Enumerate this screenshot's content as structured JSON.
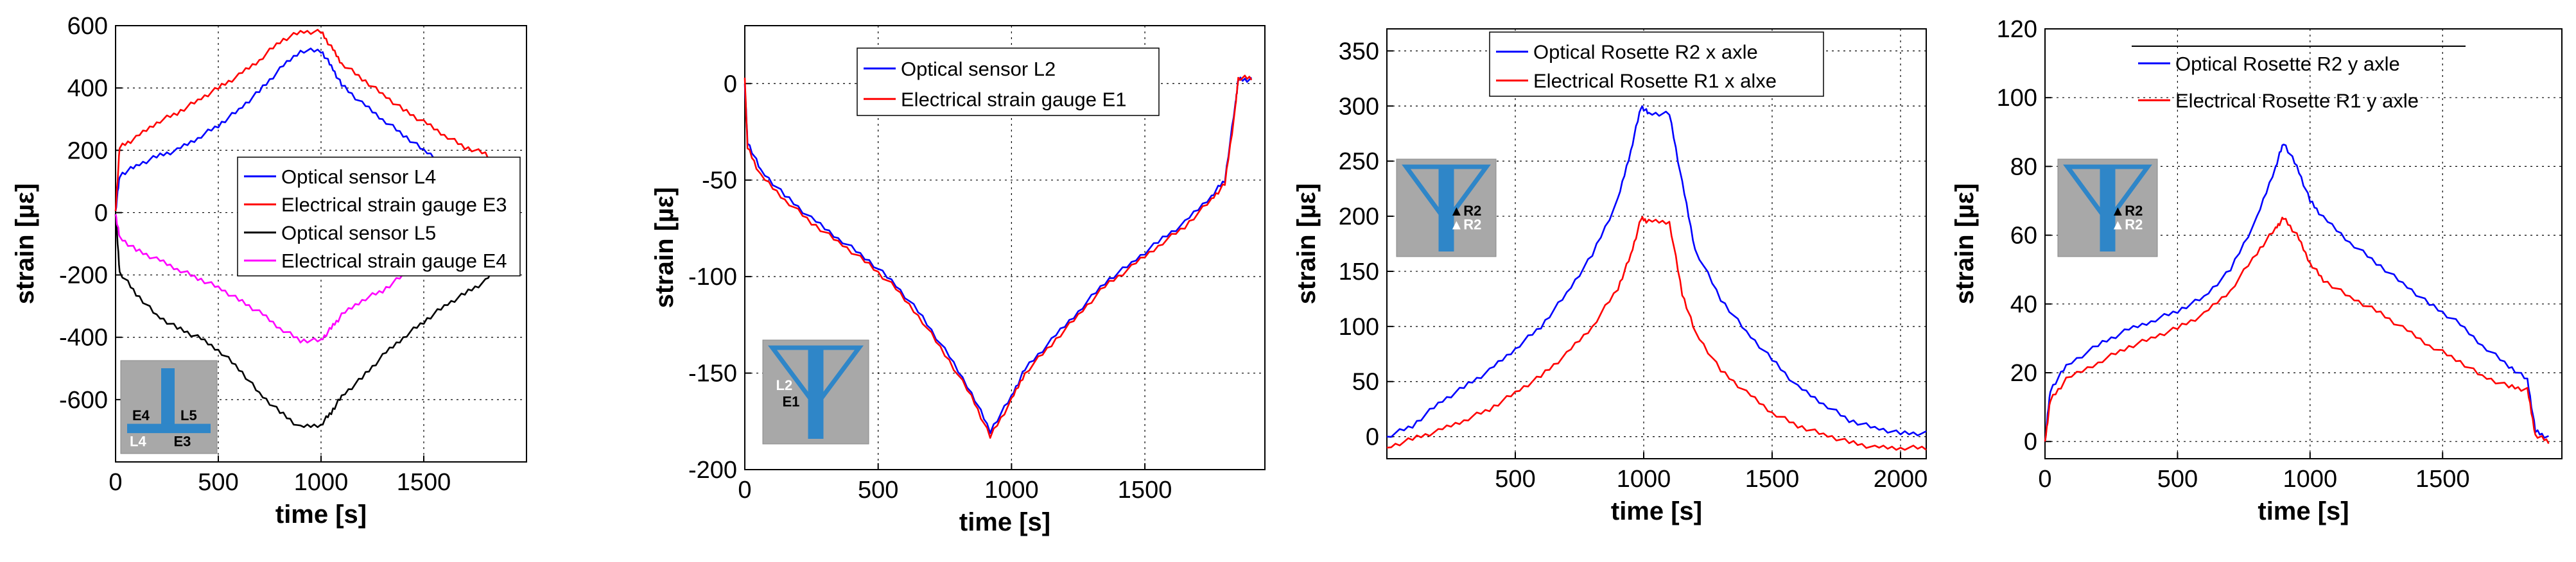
{
  "colors": {
    "blue": "#0000ff",
    "red": "#ff0000",
    "black": "#000000",
    "magenta": "#ff00ff",
    "inset_bg": "#a8a8a8",
    "inset_shape": "#2f86c8"
  },
  "chart_data": [
    {
      "type": "line",
      "xlabel": "time [s]",
      "ylabel": "strain [µε]",
      "xlim": [
        0,
        2000
      ],
      "ylim": [
        -800,
        600
      ],
      "xticks": [
        0,
        500,
        1000,
        1500
      ],
      "yticks": [
        -600,
        -400,
        -200,
        0,
        200,
        400,
        600
      ],
      "grid": true,
      "legend_position": "center-right",
      "inset_labels": [
        "E4",
        "L5",
        "L4",
        "E3"
      ],
      "series": [
        {
          "name": "Optical sensor L4",
          "color": "blue",
          "points": [
            [
              0,
              5
            ],
            [
              20,
              120
            ],
            [
              100,
              150
            ],
            [
              200,
              180
            ],
            [
              300,
              200
            ],
            [
              400,
              240
            ],
            [
              500,
              280
            ],
            [
              600,
              330
            ],
            [
              700,
              390
            ],
            [
              800,
              460
            ],
            [
              900,
              520
            ],
            [
              1000,
              520
            ],
            [
              1050,
              470
            ],
            [
              1100,
              410
            ],
            [
              1200,
              350
            ],
            [
              1300,
              300
            ],
            [
              1400,
              250
            ],
            [
              1500,
              200
            ],
            [
              1600,
              160
            ],
            [
              1700,
              130
            ],
            [
              1800,
              110
            ],
            [
              1880,
              80
            ],
            [
              1910,
              0
            ],
            [
              1960,
              0
            ]
          ]
        },
        {
          "name": "Electrical strain gauge E3",
          "color": "red",
          "points": [
            [
              0,
              5
            ],
            [
              20,
              210
            ],
            [
              100,
              240
            ],
            [
              200,
              290
            ],
            [
              300,
              320
            ],
            [
              400,
              360
            ],
            [
              500,
              400
            ],
            [
              600,
              440
            ],
            [
              700,
              490
            ],
            [
              800,
              550
            ],
            [
              900,
              580
            ],
            [
              1000,
              580
            ],
            [
              1050,
              530
            ],
            [
              1100,
              480
            ],
            [
              1200,
              430
            ],
            [
              1300,
              380
            ],
            [
              1400,
              330
            ],
            [
              1500,
              290
            ],
            [
              1600,
              250
            ],
            [
              1700,
              210
            ],
            [
              1800,
              190
            ],
            [
              1880,
              110
            ],
            [
              1910,
              10
            ],
            [
              1960,
              10
            ]
          ]
        },
        {
          "name": "Optical sensor L5",
          "color": "black",
          "points": [
            [
              0,
              -5
            ],
            [
              20,
              -190
            ],
            [
              100,
              -260
            ],
            [
              200,
              -330
            ],
            [
              300,
              -370
            ],
            [
              400,
              -400
            ],
            [
              500,
              -440
            ],
            [
              600,
              -500
            ],
            [
              700,
              -580
            ],
            [
              800,
              -640
            ],
            [
              900,
              -690
            ],
            [
              1000,
              -680
            ],
            [
              1050,
              -640
            ],
            [
              1100,
              -590
            ],
            [
              1200,
              -530
            ],
            [
              1300,
              -460
            ],
            [
              1400,
              -400
            ],
            [
              1500,
              -350
            ],
            [
              1600,
              -300
            ],
            [
              1700,
              -260
            ],
            [
              1800,
              -220
            ],
            [
              1880,
              -160
            ],
            [
              1910,
              -20
            ],
            [
              1960,
              -20
            ]
          ]
        },
        {
          "name": "Electrical strain gauge  E4",
          "color": "magenta",
          "points": [
            [
              0,
              -5
            ],
            [
              20,
              -80
            ],
            [
              100,
              -120
            ],
            [
              200,
              -150
            ],
            [
              300,
              -180
            ],
            [
              400,
              -210
            ],
            [
              500,
              -240
            ],
            [
              600,
              -280
            ],
            [
              700,
              -320
            ],
            [
              800,
              -370
            ],
            [
              900,
              -410
            ],
            [
              1000,
              -410
            ],
            [
              1050,
              -370
            ],
            [
              1100,
              -330
            ],
            [
              1200,
              -280
            ],
            [
              1300,
              -250
            ],
            [
              1400,
              -200
            ],
            [
              1500,
              -170
            ],
            [
              1600,
              -140
            ],
            [
              1700,
              -110
            ],
            [
              1800,
              -90
            ],
            [
              1880,
              -60
            ],
            [
              1910,
              -10
            ],
            [
              1960,
              -10
            ]
          ]
        }
      ]
    },
    {
      "type": "line",
      "xlabel": "time [s]",
      "ylabel": "strain [µε]",
      "xlim": [
        0,
        1950
      ],
      "ylim": [
        -200,
        30
      ],
      "xticks": [
        0,
        500,
        1000,
        1500
      ],
      "yticks": [
        -200,
        -150,
        -100,
        -50,
        0
      ],
      "grid": true,
      "legend_position": "top-center",
      "inset_labels": [
        "L2",
        "E1"
      ],
      "series": [
        {
          "name": "Optical sensor L2",
          "color": "blue",
          "points": [
            [
              0,
              0
            ],
            [
              10,
              -30
            ],
            [
              60,
              -45
            ],
            [
              150,
              -58
            ],
            [
              250,
              -70
            ],
            [
              350,
              -80
            ],
            [
              450,
              -90
            ],
            [
              550,
              -102
            ],
            [
              650,
              -118
            ],
            [
              750,
              -138
            ],
            [
              850,
              -160
            ],
            [
              920,
              -180
            ],
            [
              1000,
              -162
            ],
            [
              1050,
              -148
            ],
            [
              1150,
              -133
            ],
            [
              1250,
              -118
            ],
            [
              1350,
              -103
            ],
            [
              1450,
              -93
            ],
            [
              1550,
              -82
            ],
            [
              1650,
              -72
            ],
            [
              1750,
              -58
            ],
            [
              1800,
              -50
            ],
            [
              1840,
              -10
            ],
            [
              1850,
              2
            ],
            [
              1900,
              2
            ]
          ]
        },
        {
          "name": "Electrical strain gauge E1",
          "color": "red",
          "points": [
            [
              0,
              3
            ],
            [
              10,
              -33
            ],
            [
              60,
              -48
            ],
            [
              150,
              -60
            ],
            [
              250,
              -72
            ],
            [
              350,
              -82
            ],
            [
              450,
              -92
            ],
            [
              550,
              -104
            ],
            [
              650,
              -120
            ],
            [
              750,
              -140
            ],
            [
              850,
              -162
            ],
            [
              920,
              -183
            ],
            [
              1000,
              -164
            ],
            [
              1050,
              -150
            ],
            [
              1150,
              -135
            ],
            [
              1250,
              -120
            ],
            [
              1350,
              -105
            ],
            [
              1450,
              -95
            ],
            [
              1550,
              -84
            ],
            [
              1650,
              -74
            ],
            [
              1750,
              -60
            ],
            [
              1800,
              -52
            ],
            [
              1840,
              -12
            ],
            [
              1850,
              3
            ],
            [
              1900,
              3
            ]
          ]
        }
      ]
    },
    {
      "type": "line",
      "xlabel": "time [s]",
      "ylabel": "strain [µε]",
      "xlim": [
        0,
        2100
      ],
      "ylim": [
        -20,
        370
      ],
      "xticks": [
        500,
        1000,
        1500,
        2000
      ],
      "yticks": [
        0,
        50,
        100,
        150,
        200,
        250,
        300,
        350
      ],
      "grid": true,
      "legend_position": "top-center",
      "inset_labels": [
        "R2",
        "R2"
      ],
      "series": [
        {
          "name": "Optical Rosette R2 x axle",
          "color": "blue",
          "points": [
            [
              0,
              0
            ],
            [
              100,
              10
            ],
            [
              200,
              30
            ],
            [
              300,
              45
            ],
            [
              400,
              60
            ],
            [
              500,
              80
            ],
            [
              600,
              100
            ],
            [
              700,
              130
            ],
            [
              800,
              165
            ],
            [
              900,
              215
            ],
            [
              950,
              260
            ],
            [
              990,
              300
            ],
            [
              1020,
              293
            ],
            [
              1100,
              293
            ],
            [
              1150,
              230
            ],
            [
              1200,
              170
            ],
            [
              1300,
              125
            ],
            [
              1400,
              95
            ],
            [
              1500,
              70
            ],
            [
              1600,
              45
            ],
            [
              1700,
              30
            ],
            [
              1800,
              15
            ],
            [
              1900,
              8
            ],
            [
              2000,
              3
            ],
            [
              2100,
              3
            ]
          ]
        },
        {
          "name": "Electrical Rosette R1 x alxe",
          "color": "red",
          "points": [
            [
              0,
              -10
            ],
            [
              100,
              -2
            ],
            [
              200,
              5
            ],
            [
              300,
              15
            ],
            [
              400,
              25
            ],
            [
              500,
              40
            ],
            [
              600,
              55
            ],
            [
              700,
              75
            ],
            [
              800,
              100
            ],
            [
              900,
              135
            ],
            [
              950,
              165
            ],
            [
              990,
              198
            ],
            [
              1020,
              195
            ],
            [
              1100,
              195
            ],
            [
              1150,
              130
            ],
            [
              1200,
              95
            ],
            [
              1300,
              60
            ],
            [
              1400,
              40
            ],
            [
              1500,
              22
            ],
            [
              1600,
              10
            ],
            [
              1700,
              2
            ],
            [
              1800,
              -5
            ],
            [
              1900,
              -10
            ],
            [
              2000,
              -10
            ],
            [
              2100,
              -10
            ]
          ]
        }
      ]
    },
    {
      "type": "line",
      "xlabel": "time [s]",
      "ylabel": "strain [µε]",
      "xlim": [
        0,
        1950
      ],
      "ylim": [
        -5,
        120
      ],
      "xticks": [
        0,
        500,
        1000,
        1500
      ],
      "yticks": [
        0,
        20,
        40,
        60,
        80,
        100,
        120
      ],
      "grid": true,
      "legend_position": "top-center",
      "inset_labels": [
        "R2",
        "R2"
      ],
      "series": [
        {
          "name": "Optical Rosette R2 y axle",
          "color": "blue",
          "points": [
            [
              0,
              0
            ],
            [
              20,
              15
            ],
            [
              80,
              22
            ],
            [
              200,
              28
            ],
            [
              300,
              32
            ],
            [
              400,
              35
            ],
            [
              500,
              38
            ],
            [
              600,
              42
            ],
            [
              700,
              50
            ],
            [
              800,
              65
            ],
            [
              870,
              80
            ],
            [
              900,
              87
            ],
            [
              950,
              80
            ],
            [
              1000,
              70
            ],
            [
              1050,
              65
            ],
            [
              1150,
              58
            ],
            [
              1250,
              52
            ],
            [
              1350,
              46
            ],
            [
              1450,
              40
            ],
            [
              1550,
              35
            ],
            [
              1650,
              28
            ],
            [
              1750,
              22
            ],
            [
              1820,
              18
            ],
            [
              1850,
              3
            ],
            [
              1900,
              1
            ]
          ]
        },
        {
          "name": "Electrical Rosette R1 y axle",
          "color": "red",
          "points": [
            [
              0,
              0
            ],
            [
              20,
              12
            ],
            [
              80,
              18
            ],
            [
              200,
              23
            ],
            [
              300,
              27
            ],
            [
              400,
              30
            ],
            [
              500,
              33
            ],
            [
              600,
              37
            ],
            [
              700,
              44
            ],
            [
              800,
              55
            ],
            [
              870,
              62
            ],
            [
              900,
              65
            ],
            [
              950,
              60
            ],
            [
              1000,
              52
            ],
            [
              1050,
              47
            ],
            [
              1150,
              42
            ],
            [
              1250,
              38
            ],
            [
              1350,
              33
            ],
            [
              1450,
              28
            ],
            [
              1550,
              24
            ],
            [
              1650,
              19
            ],
            [
              1750,
              16
            ],
            [
              1820,
              15
            ],
            [
              1850,
              2
            ],
            [
              1900,
              0
            ]
          ]
        }
      ]
    }
  ]
}
